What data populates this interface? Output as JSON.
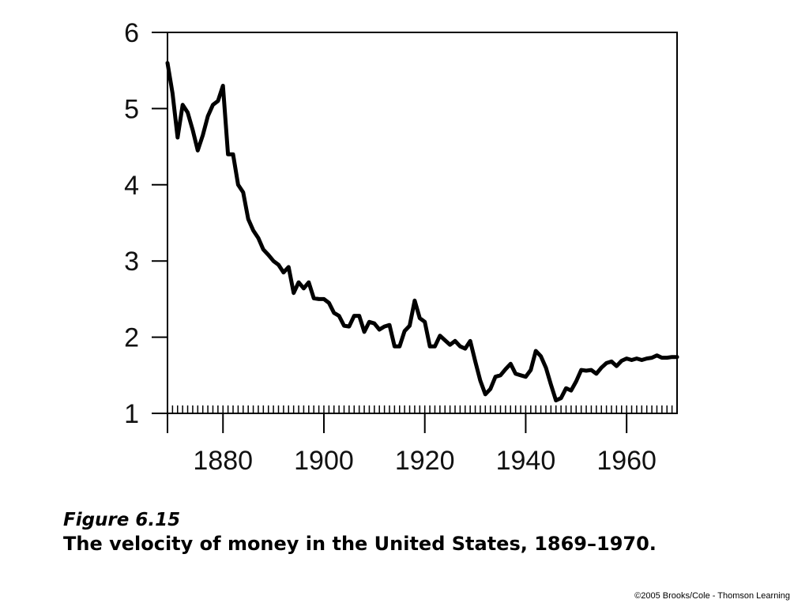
{
  "figure": {
    "number_label": "Figure 6.15",
    "caption": "The velocity of money in the United States, 1869–1970.",
    "copyright": "©2005 Brooks/Cole - Thomson Learning"
  },
  "chart_data": {
    "type": "line",
    "title": "",
    "xlabel": "",
    "ylabel": "",
    "xlim": [
      1869,
      1970
    ],
    "ylim": [
      1,
      6
    ],
    "x_ticks": [
      1880,
      1900,
      1920,
      1940,
      1960
    ],
    "y_ticks": [
      1,
      2,
      3,
      4,
      5,
      6
    ],
    "grid": false,
    "series": [
      {
        "x": [
          1869,
          1870,
          1871,
          1872,
          1873,
          1874,
          1875,
          1876,
          1877,
          1878,
          1879,
          1880,
          1881,
          1882,
          1883,
          1884,
          1885,
          1886,
          1887,
          1888,
          1889,
          1890,
          1891,
          1892,
          1893,
          1894,
          1895,
          1896,
          1897,
          1898,
          1899,
          1900,
          1901,
          1902,
          1903,
          1904,
          1905,
          1906,
          1907,
          1908,
          1909,
          1910,
          1911,
          1912,
          1913,
          1914,
          1915,
          1916,
          1917,
          1918,
          1919,
          1920,
          1921,
          1922,
          1923,
          1924,
          1925,
          1926,
          1927,
          1928,
          1929,
          1930,
          1931,
          1932,
          1933,
          1934,
          1935,
          1936,
          1937,
          1938,
          1939,
          1940,
          1941,
          1942,
          1943,
          1944,
          1945,
          1946,
          1947,
          1948,
          1949,
          1950,
          1951,
          1952,
          1953,
          1954,
          1955,
          1956,
          1957,
          1958,
          1959,
          1960,
          1961,
          1962,
          1963,
          1964,
          1965,
          1966,
          1967,
          1968,
          1969,
          1970
        ],
        "values": [
          5.6,
          5.2,
          4.62,
          5.05,
          4.95,
          4.72,
          4.45,
          4.65,
          4.9,
          5.05,
          5.1,
          5.3,
          4.4,
          4.4,
          4.0,
          3.9,
          3.55,
          3.4,
          3.3,
          3.15,
          3.08,
          3.0,
          2.95,
          2.85,
          2.92,
          2.58,
          2.72,
          2.64,
          2.72,
          2.51,
          2.5,
          2.5,
          2.45,
          2.32,
          2.28,
          2.15,
          2.14,
          2.28,
          2.28,
          2.07,
          2.2,
          2.18,
          2.1,
          2.14,
          2.16,
          1.88,
          1.88,
          2.08,
          2.15,
          2.48,
          2.25,
          2.2,
          1.88,
          1.88,
          2.02,
          1.96,
          1.9,
          1.95,
          1.88,
          1.85,
          1.95,
          1.68,
          1.43,
          1.25,
          1.32,
          1.48,
          1.5,
          1.58,
          1.65,
          1.52,
          1.5,
          1.48,
          1.57,
          1.82,
          1.75,
          1.6,
          1.38,
          1.17,
          1.2,
          1.33,
          1.3,
          1.42,
          1.57,
          1.56,
          1.57,
          1.52,
          1.6,
          1.66,
          1.68,
          1.62,
          1.69,
          1.72,
          1.7,
          1.72,
          1.7,
          1.72,
          1.73,
          1.76,
          1.73,
          1.73,
          1.74,
          1.74
        ]
      }
    ]
  }
}
